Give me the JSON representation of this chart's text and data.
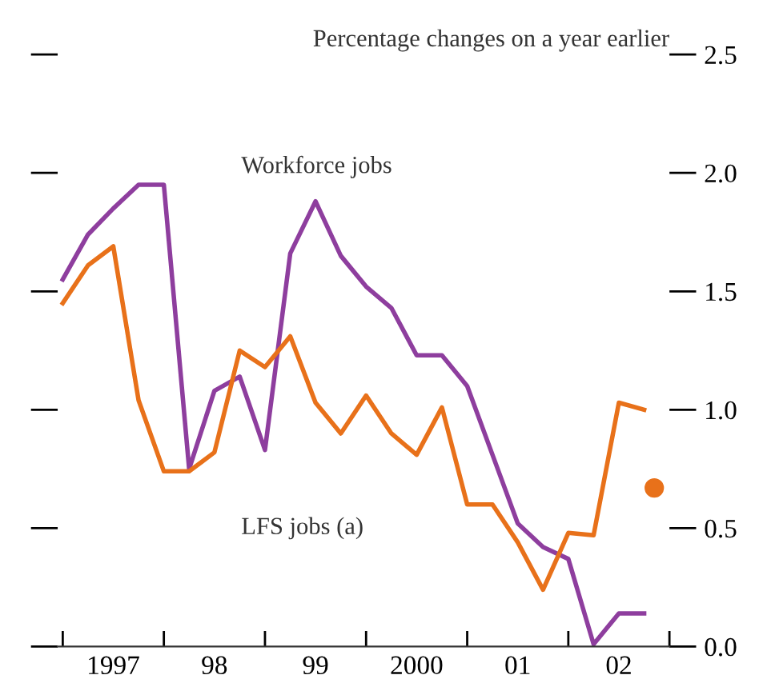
{
  "chart_data": {
    "type": "line",
    "ylabel": "Percentage changes on a year earlier",
    "x": [
      1996.5,
      1996.75,
      1997.0,
      1997.25,
      1997.5,
      1997.75,
      1998.0,
      1998.25,
      1998.5,
      1998.75,
      1999.0,
      1999.25,
      1999.5,
      1999.75,
      2000.0,
      2000.25,
      2000.5,
      2000.75,
      2001.0,
      2001.25,
      2001.5,
      2001.75,
      2002.0,
      2002.25
    ],
    "series": [
      {
        "name": "Workforce jobs",
        "color": "#8e3e9e",
        "values": [
          1.55,
          1.74,
          1.85,
          1.95,
          1.95,
          0.75,
          1.08,
          1.14,
          0.83,
          1.66,
          1.88,
          1.65,
          1.52,
          1.43,
          1.23,
          1.23,
          1.1,
          0.81,
          0.52,
          0.42,
          0.37,
          0.01,
          0.14,
          0.14
        ]
      },
      {
        "name": "LFS jobs (a)",
        "color": "#e8711a",
        "values": [
          1.45,
          1.61,
          1.69,
          1.04,
          0.74,
          0.74,
          0.82,
          1.25,
          1.18,
          1.31,
          1.03,
          0.9,
          1.06,
          0.9,
          0.81,
          1.01,
          0.6,
          0.6,
          0.44,
          0.24,
          0.48,
          0.47,
          1.03,
          1.0
        ]
      },
      {
        "type": "scatter",
        "color": "#e8711a",
        "marker": "circle",
        "x": [
          2002.35
        ],
        "values": [
          0.67
        ]
      }
    ],
    "xlim": [
      1996.45,
      2002.5
    ],
    "xticks": [
      {
        "value": 1996.5,
        "label": null
      },
      {
        "value": 1997,
        "label": "1997"
      },
      {
        "value": 1997.5,
        "label": null
      },
      {
        "value": 1998,
        "label": "98"
      },
      {
        "value": 1998.5,
        "label": null
      },
      {
        "value": 1999,
        "label": "99"
      },
      {
        "value": 1999.5,
        "label": null
      },
      {
        "value": 2000,
        "label": "2000"
      },
      {
        "value": 2000.5,
        "label": null
      },
      {
        "value": 2001,
        "label": "01"
      },
      {
        "value": 2001.5,
        "label": null
      },
      {
        "value": 2002,
        "label": "02"
      },
      {
        "value": 2002.5,
        "label": null
      }
    ],
    "ylim": [
      0,
      2.5
    ],
    "yticks": [
      {
        "value": 0,
        "label": "0.0"
      },
      {
        "value": 0.5,
        "label": "0.5"
      },
      {
        "value": 1,
        "label": "1.0"
      },
      {
        "value": 1.5,
        "label": "1.5"
      },
      {
        "value": 2,
        "label": "2.0"
      },
      {
        "value": 2.5,
        "label": "2.5"
      }
    ],
    "legend": false,
    "grid": false,
    "marker": "none",
    "line_style": "solid"
  }
}
